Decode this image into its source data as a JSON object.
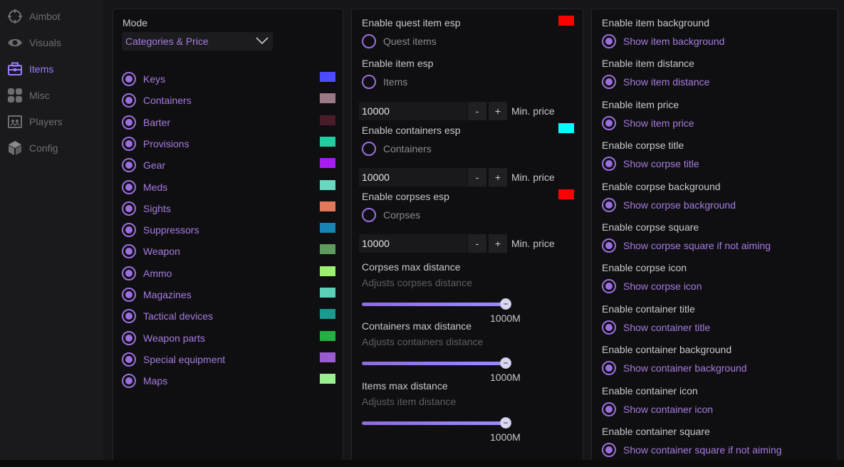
{
  "sidebar": {
    "items": [
      {
        "label": "Aimbot",
        "icon": "crosshair-icon",
        "active": false
      },
      {
        "label": "Visuals",
        "icon": "eye-icon",
        "active": false
      },
      {
        "label": "Items",
        "icon": "briefcase-icon",
        "active": true
      },
      {
        "label": "Misc",
        "icon": "grid-icon",
        "active": false
      },
      {
        "label": "Players",
        "icon": "players-icon",
        "active": false
      },
      {
        "label": "Config",
        "icon": "cube-icon",
        "active": false
      }
    ]
  },
  "left_panel": {
    "mode_label": "Mode",
    "mode_value": "Categories & Price",
    "categories": [
      {
        "label": "Keys",
        "color": "#4b4bff"
      },
      {
        "label": "Containers",
        "color": "#9a7888"
      },
      {
        "label": "Barter",
        "color": "#4a1c2a"
      },
      {
        "label": "Provisions",
        "color": "#1fcfa0"
      },
      {
        "label": "Gear",
        "color": "#a81cf0"
      },
      {
        "label": "Meds",
        "color": "#6ad8c0"
      },
      {
        "label": "Sights",
        "color": "#e0785a"
      },
      {
        "label": "Suppressors",
        "color": "#1784b4"
      },
      {
        "label": "Weapon",
        "color": "#5f9a60"
      },
      {
        "label": "Ammo",
        "color": "#9bf070"
      },
      {
        "label": "Magazines",
        "color": "#5ad0b8"
      },
      {
        "label": "Tactical devices",
        "color": "#1a9a90"
      },
      {
        "label": "Weapon parts",
        "color": "#22b040"
      },
      {
        "label": "Special equipment",
        "color": "#9a5ad0"
      },
      {
        "label": "Maps",
        "color": "#9af090"
      }
    ]
  },
  "middle_panel": {
    "quest": {
      "title": "Enable quest item esp",
      "option": "Quest items",
      "color": "#ff0000"
    },
    "item": {
      "title": "Enable item esp",
      "option": "Items"
    },
    "item_price": {
      "value": "10000",
      "minus": "-",
      "plus": "+",
      "label": "Min. price"
    },
    "containers": {
      "title": "Enable containers esp",
      "option": "Containers",
      "color": "#00ffff"
    },
    "containers_price": {
      "value": "10000",
      "minus": "-",
      "plus": "+",
      "label": "Min. price"
    },
    "corpses": {
      "title": "Enable corpses esp",
      "option": "Corpses",
      "color": "#ff0000"
    },
    "corpses_price": {
      "value": "10000",
      "minus": "-",
      "plus": "+",
      "label": "Min. price"
    },
    "sliders": [
      {
        "title": "Corpses max distance",
        "desc": "Adjusts corpses distance",
        "value": "1000M",
        "fraction": 1.0
      },
      {
        "title": "Containers max distance",
        "desc": "Adjusts containers distance",
        "value": "1000M",
        "fraction": 1.0
      },
      {
        "title": "Items max distance",
        "desc": "Adjusts item distance",
        "value": "1000M",
        "fraction": 1.0
      }
    ]
  },
  "right_panel": {
    "options": [
      {
        "title": "Enable item background",
        "option": "Show item background"
      },
      {
        "title": "Enable item distance",
        "option": "Show item distance"
      },
      {
        "title": "Enable item price",
        "option": "Show item price"
      },
      {
        "title": "Enable corpse title",
        "option": "Show corpse title"
      },
      {
        "title": "Enable corpse background",
        "option": "Show corpse background"
      },
      {
        "title": "Enable corpse square",
        "option": "Show corpse square if not aiming"
      },
      {
        "title": "Enable corpse icon",
        "option": "Show corpse icon"
      },
      {
        "title": "Enable container title",
        "option": "Show container title"
      },
      {
        "title": "Enable container background",
        "option": "Show container background"
      },
      {
        "title": "Enable container icon",
        "option": "Show container icon"
      },
      {
        "title": "Enable container square",
        "option": "Show container square if not aiming"
      }
    ]
  }
}
